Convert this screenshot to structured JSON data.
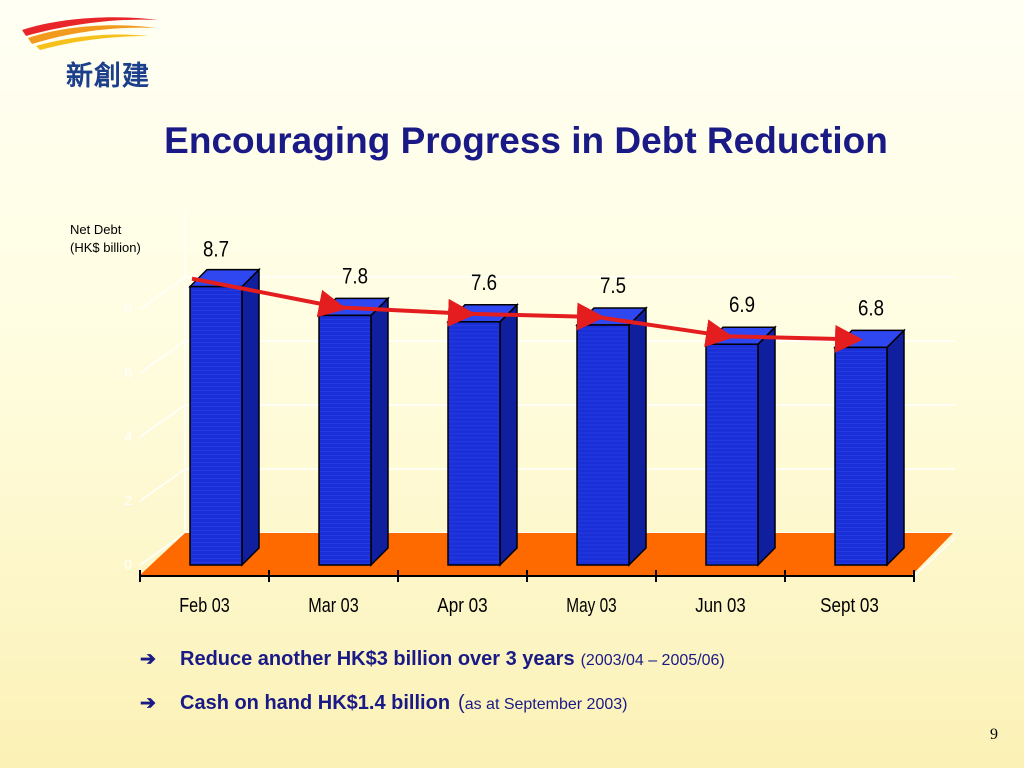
{
  "logo": {
    "text": "新創建"
  },
  "slide": {
    "title": "Encouraging Progress in Debt Reduction",
    "page_number": "9"
  },
  "colors": {
    "title": "#1a1a86",
    "bar": "#1a2fd6",
    "floor": "#ff6a00",
    "trend": "#e41e1e",
    "background_top": "#fffff4",
    "background_bottom": "#fbf1b6"
  },
  "chart_data": {
    "type": "bar",
    "ylabel_line1": "Net Debt",
    "ylabel_line2": "(HK$ billion)",
    "categories": [
      "Feb 03",
      "Mar 03",
      "Apr 03",
      "May 03",
      "Jun 03",
      "Sept 03"
    ],
    "values": [
      8.7,
      7.8,
      7.6,
      7.5,
      6.9,
      6.8
    ],
    "value_labels": [
      "8.7",
      "7.8",
      "7.6",
      "7.5",
      "6.9",
      "6.8"
    ],
    "ylim": [
      0,
      10
    ],
    "yticks": [
      "0",
      "2",
      "4",
      "6",
      "8"
    ],
    "grid": true,
    "trend_line": true
  },
  "bullets": [
    {
      "icon": "arrow-right-icon",
      "text": "Reduce another HK$3 billion over 3 years",
      "note": "(2003/04 – 2005/06)"
    },
    {
      "icon": "arrow-right-icon",
      "text": "Cash on hand HK$1.4 billion",
      "paren": "(",
      "note": "as at September 2003)"
    }
  ]
}
